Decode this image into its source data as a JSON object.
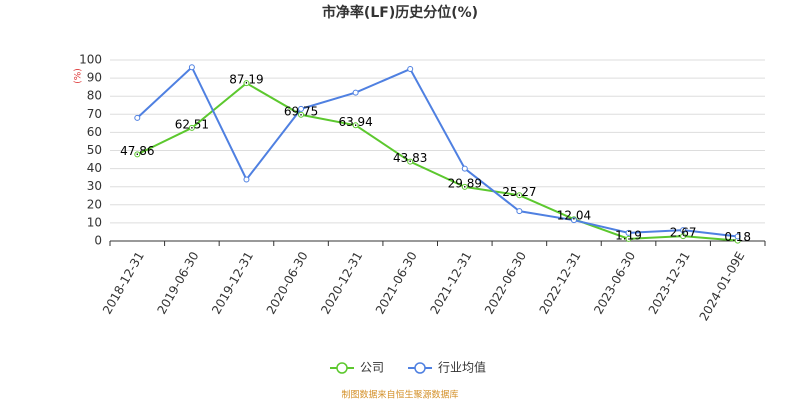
{
  "chart_data": {
    "type": "line",
    "title": "市净率(LF)历史分位(%)",
    "y_unit": "(%)",
    "categories": [
      "2018-12-31",
      "2019-06-30",
      "2019-12-31",
      "2020-06-30",
      "2020-12-31",
      "2021-06-30",
      "2021-12-31",
      "2022-06-30",
      "2022-12-31",
      "2023-06-30",
      "2023-12-31",
      "2024-01-09E"
    ],
    "series": [
      {
        "name": "公司",
        "color": "#5cc82e",
        "show_values": true,
        "values": [
          47.86,
          62.51,
          87.19,
          69.75,
          63.94,
          43.83,
          29.89,
          25.27,
          12.04,
          1.19,
          2.67,
          0.18
        ]
      },
      {
        "name": "行业均值",
        "color": "#4f80e1",
        "show_values": false,
        "values": [
          68,
          96,
          34,
          73,
          82,
          95,
          40,
          16.5,
          11.5,
          4.5,
          6,
          2.5
        ]
      }
    ],
    "ylim": [
      0,
      100
    ],
    "yticks": [
      0,
      10,
      20,
      30,
      40,
      50,
      60,
      70,
      80,
      90,
      100
    ],
    "grid": true,
    "legend": "bottom",
    "source": "制图数据来自恒生聚源数据库"
  }
}
